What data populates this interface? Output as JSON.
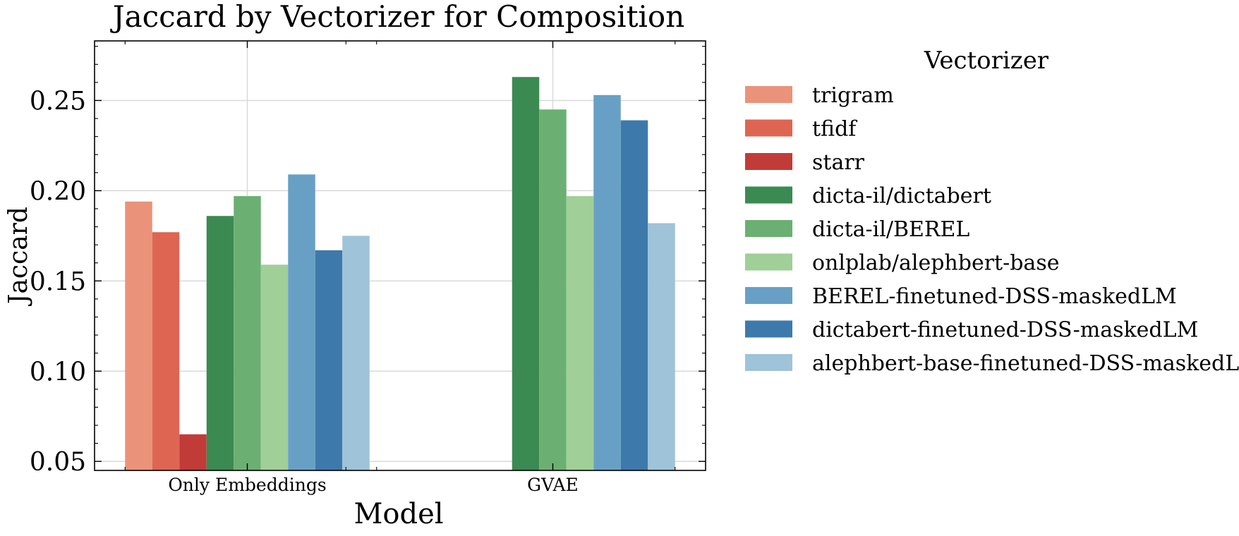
{
  "chart_data": {
    "type": "bar",
    "title": "Jaccard by Vectorizer for Composition",
    "xlabel": "Model",
    "ylabel": "Jaccard",
    "categories": [
      "Only Embeddings",
      "GVAE"
    ],
    "ylim": [
      0.045,
      0.283
    ],
    "yticks": [
      0.05,
      0.1,
      0.15,
      0.2,
      0.25
    ],
    "ytick_labels": [
      "0.05",
      "0.10",
      "0.15",
      "0.20",
      "0.25"
    ],
    "grid": true,
    "legend": {
      "title": "Vectorizer",
      "placement": "outside-right"
    },
    "series": [
      {
        "name": "trigram",
        "color": "#ea937a",
        "values": [
          0.194,
          null
        ]
      },
      {
        "name": "tfidf",
        "color": "#de6552",
        "values": [
          0.177,
          null
        ]
      },
      {
        "name": "starr",
        "color": "#c13c38",
        "values": [
          0.065,
          null
        ]
      },
      {
        "name": "dicta-il/dictabert",
        "color": "#3b8a52",
        "values": [
          0.186,
          0.263
        ]
      },
      {
        "name": "dicta-il/BEREL",
        "color": "#6bb072",
        "values": [
          0.197,
          0.245
        ]
      },
      {
        "name": "onlplab/alephbert-base",
        "color": "#a0cf97",
        "values": [
          0.159,
          0.197
        ]
      },
      {
        "name": "BEREL-finetuned-DSS-maskedLM",
        "color": "#68a0c5",
        "values": [
          0.209,
          0.253
        ]
      },
      {
        "name": "dictabert-finetuned-DSS-maskedLM",
        "color": "#3d7aab",
        "values": [
          0.167,
          0.239
        ]
      },
      {
        "name": "alephbert-base-finetuned-DSS-maskedLM",
        "color": "#9fc3d8",
        "values": [
          0.175,
          0.182
        ]
      }
    ]
  }
}
